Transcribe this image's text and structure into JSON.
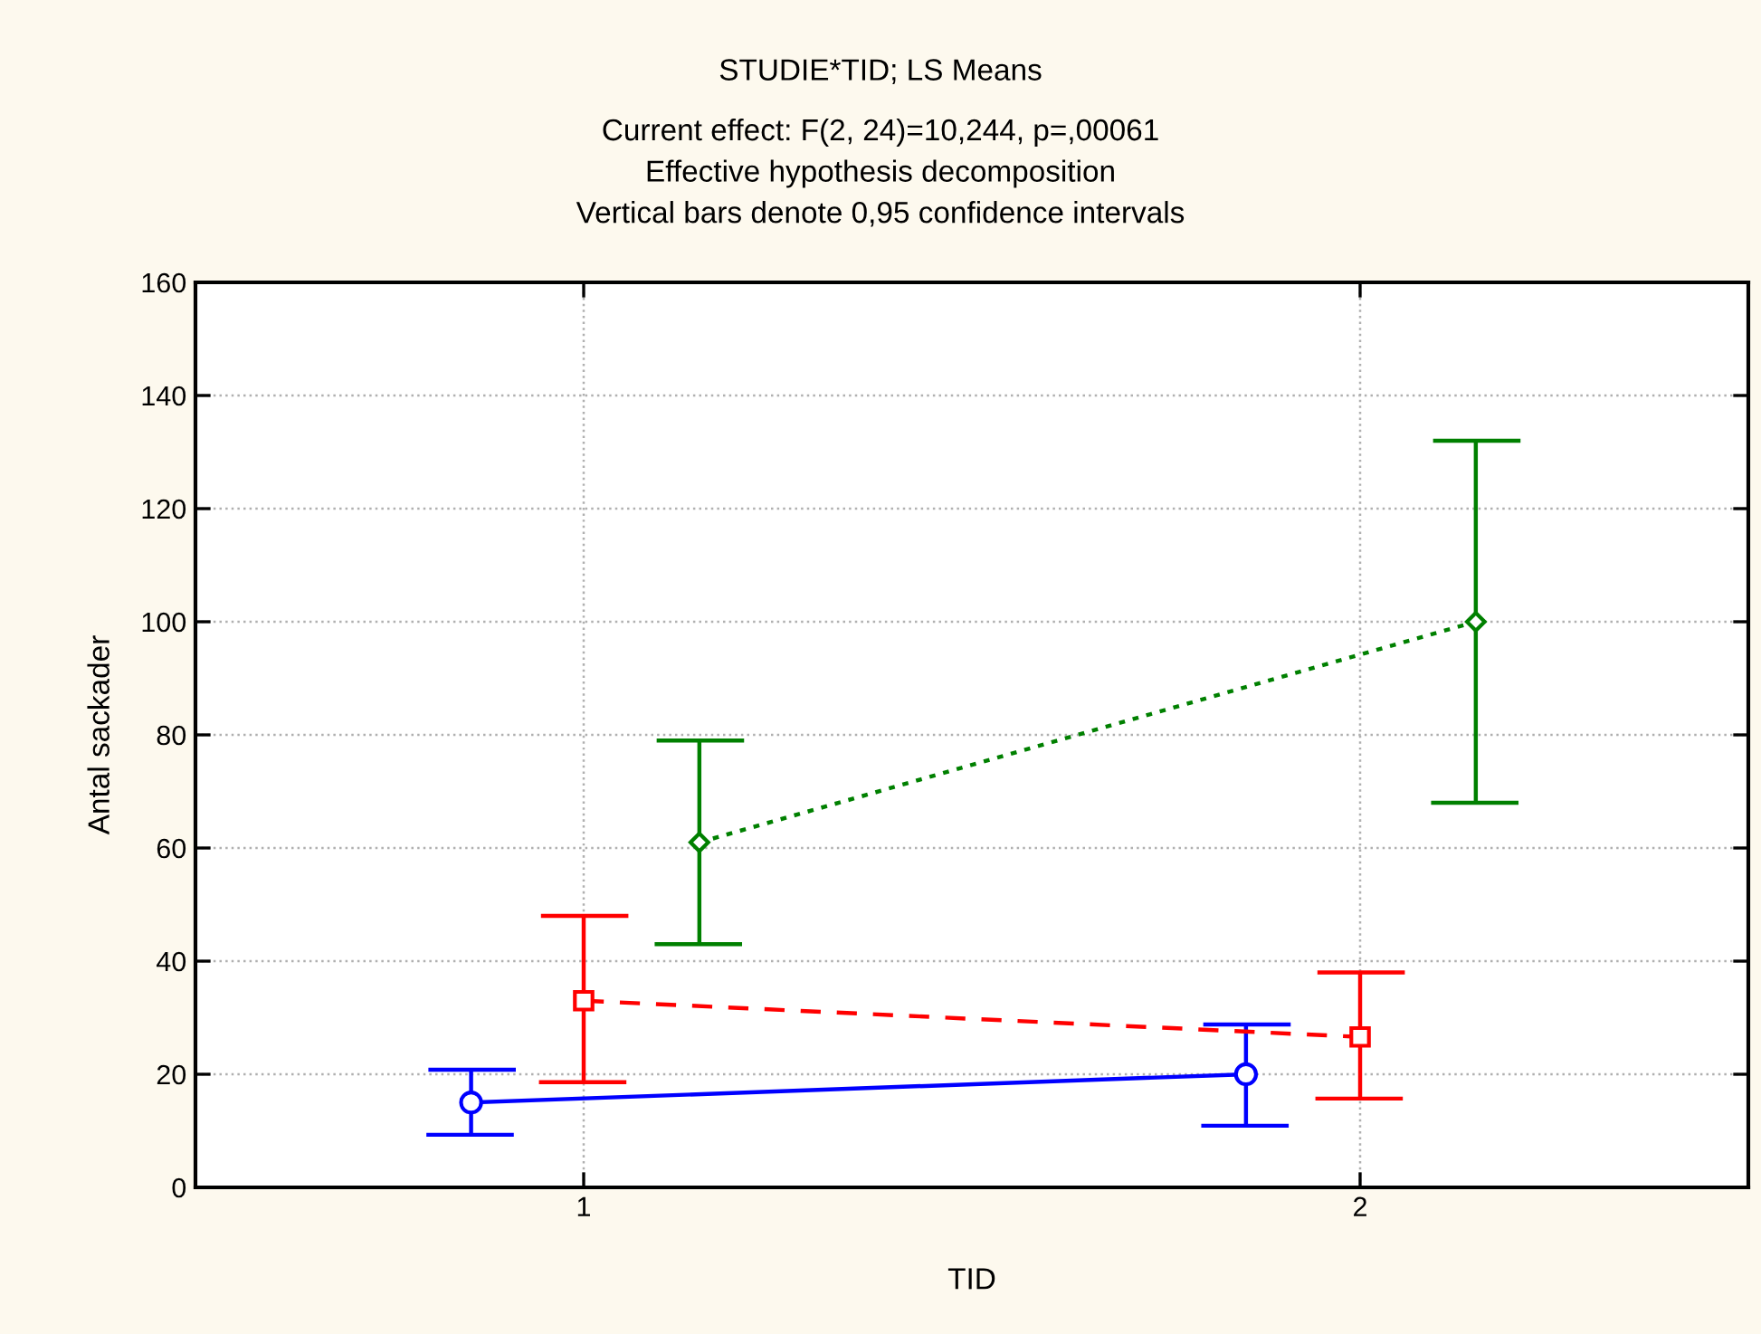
{
  "chart_data": {
    "type": "line",
    "title": "STUDIE*TID; LS Means",
    "subtitle": "Current effect: F(2, 24)=10,244, p=,00061\nEffective hypothesis decomposition\nVertical bars denote 0,95 confidence intervals",
    "xlabel": "TID",
    "ylabel": "Antal sackader",
    "xlim": [
      0.5,
      2.5
    ],
    "xticks": [
      1,
      2
    ],
    "ylim": [
      0,
      160
    ],
    "yticks": [
      0,
      20,
      40,
      60,
      80,
      100,
      120,
      140,
      160
    ],
    "grid": true,
    "legend": false,
    "series": [
      {
        "color": "#0000ff",
        "marker": "circle",
        "line_style": "solid",
        "x": [
          0.855,
          1.853
        ],
        "values": [
          15,
          20
        ],
        "errors": [
          [
            9.3,
            20.8
          ],
          [
            10.9,
            28.8
          ]
        ]
      },
      {
        "color": "#ff0000",
        "marker": "square",
        "line_style": "dashed",
        "x": [
          1.0,
          2.0
        ],
        "values": [
          33,
          26.6
        ],
        "errors": [
          [
            18.6,
            48
          ],
          [
            15.7,
            38
          ]
        ]
      },
      {
        "color": "#008000",
        "marker": "diamond",
        "line_style": "dotted",
        "x": [
          1.149,
          2.149
        ],
        "values": [
          61,
          100
        ],
        "errors": [
          [
            43,
            79
          ],
          [
            68,
            132
          ]
        ]
      }
    ]
  }
}
